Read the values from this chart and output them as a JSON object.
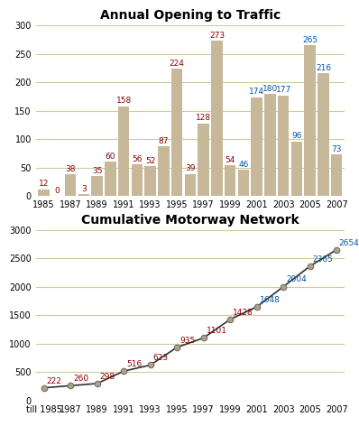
{
  "years": [
    1985,
    1986,
    1987,
    1988,
    1989,
    1990,
    1991,
    1992,
    1993,
    1994,
    1995,
    1996,
    1997,
    1998,
    1999,
    2000,
    2001,
    2002,
    2003,
    2004,
    2005,
    2006,
    2007
  ],
  "bar_values": [
    12,
    0,
    38,
    3,
    35,
    60,
    158,
    56,
    52,
    87,
    224,
    39,
    128,
    273,
    54,
    46,
    174,
    180,
    177,
    96,
    265,
    216,
    73
  ],
  "cumulative_years": [
    1985,
    1987,
    1989,
    1991,
    1993,
    1995,
    1997,
    1999,
    2001,
    2003,
    2005,
    2007
  ],
  "cumulative_values": [
    222,
    260,
    298,
    516,
    623,
    935,
    1101,
    1428,
    1648,
    2004,
    2365,
    2654
  ],
  "bar_color": "#C8B89A",
  "bar_label_color": "#8B0000",
  "bar_label_color_highlight": "#0055AA",
  "line_color": "#303030",
  "marker_facecolor": "#B0A090",
  "marker_edgecolor": "#707060",
  "grid_color": "#CCCC99",
  "background_color": "#FFFFFF",
  "title_bar": "Annual Opening to Traffic",
  "title_line": "Cumulative Motorway Network",
  "bar_ylim": [
    0,
    300
  ],
  "bar_yticks": [
    0,
    50,
    100,
    150,
    200,
    250,
    300
  ],
  "line_ylim": [
    0,
    3000
  ],
  "line_yticks": [
    0,
    500,
    1000,
    1500,
    2000,
    2500,
    3000
  ],
  "xlabel_ticks": [
    1985,
    1987,
    1989,
    1991,
    1993,
    1995,
    1997,
    1999,
    2001,
    2003,
    2005,
    2007
  ],
  "title_fontsize": 10,
  "label_fontsize": 6.5,
  "tick_fontsize": 7
}
